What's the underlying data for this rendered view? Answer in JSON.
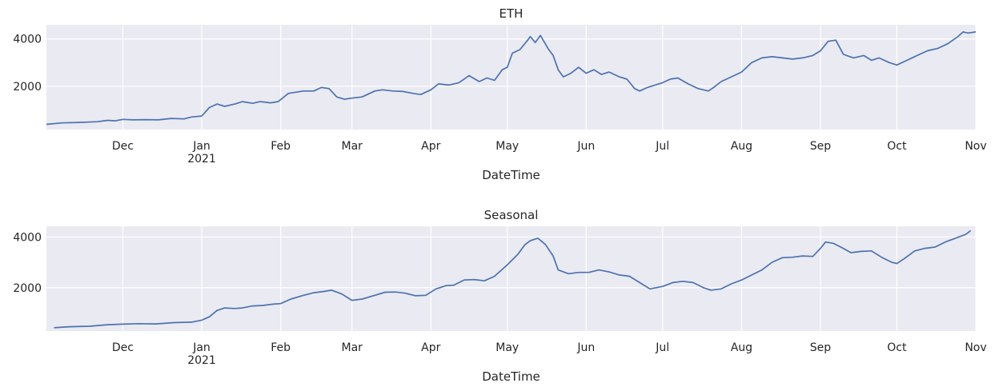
{
  "chart_data": [
    {
      "type": "line",
      "title": "ETH",
      "xlabel": "DateTime",
      "ylabel": "",
      "x_range": [
        "2020-11-01",
        "2021-11-01"
      ],
      "ylim": [
        170,
        4600
      ],
      "yticks": [
        2000,
        4000
      ],
      "xticks": [
        {
          "date": "2020-12-01",
          "label": "Dec",
          "sub": ""
        },
        {
          "date": "2021-01-01",
          "label": "Jan",
          "sub": "2021"
        },
        {
          "date": "2021-02-01",
          "label": "Feb",
          "sub": ""
        },
        {
          "date": "2021-03-01",
          "label": "Mar",
          "sub": ""
        },
        {
          "date": "2021-04-01",
          "label": "Apr",
          "sub": ""
        },
        {
          "date": "2021-05-01",
          "label": "May",
          "sub": ""
        },
        {
          "date": "2021-06-01",
          "label": "Jun",
          "sub": ""
        },
        {
          "date": "2021-07-01",
          "label": "Jul",
          "sub": ""
        },
        {
          "date": "2021-08-01",
          "label": "Aug",
          "sub": ""
        },
        {
          "date": "2021-09-01",
          "label": "Sep",
          "sub": ""
        },
        {
          "date": "2021-10-01",
          "label": "Oct",
          "sub": ""
        },
        {
          "date": "2021-11-01",
          "label": "Nov",
          "sub": ""
        }
      ],
      "grid": true,
      "series": [
        {
          "color": "#4c72b0",
          "x": [
            "2020-11-01",
            "2020-11-07",
            "2020-11-14",
            "2020-11-21",
            "2020-11-25",
            "2020-11-28",
            "2020-12-01",
            "2020-12-05",
            "2020-12-10",
            "2020-12-15",
            "2020-12-20",
            "2020-12-25",
            "2020-12-28",
            "2021-01-01",
            "2021-01-04",
            "2021-01-07",
            "2021-01-10",
            "2021-01-14",
            "2021-01-17",
            "2021-01-21",
            "2021-01-24",
            "2021-01-28",
            "2021-01-31",
            "2021-02-04",
            "2021-02-07",
            "2021-02-10",
            "2021-02-14",
            "2021-02-17",
            "2021-02-20",
            "2021-02-23",
            "2021-02-26",
            "2021-03-01",
            "2021-03-05",
            "2021-03-10",
            "2021-03-13",
            "2021-03-17",
            "2021-03-21",
            "2021-03-25",
            "2021-03-28",
            "2021-04-01",
            "2021-04-04",
            "2021-04-08",
            "2021-04-12",
            "2021-04-16",
            "2021-04-20",
            "2021-04-23",
            "2021-04-26",
            "2021-04-29",
            "2021-05-01",
            "2021-05-03",
            "2021-05-06",
            "2021-05-09",
            "2021-05-10",
            "2021-05-12",
            "2021-05-14",
            "2021-05-17",
            "2021-05-19",
            "2021-05-21",
            "2021-05-23",
            "2021-05-26",
            "2021-05-29",
            "2021-06-01",
            "2021-06-04",
            "2021-06-07",
            "2021-06-10",
            "2021-06-14",
            "2021-06-17",
            "2021-06-20",
            "2021-06-22",
            "2021-06-25",
            "2021-06-28",
            "2021-07-01",
            "2021-07-04",
            "2021-07-07",
            "2021-07-11",
            "2021-07-15",
            "2021-07-19",
            "2021-07-21",
            "2021-07-24",
            "2021-07-28",
            "2021-08-01",
            "2021-08-05",
            "2021-08-09",
            "2021-08-13",
            "2021-08-17",
            "2021-08-21",
            "2021-08-25",
            "2021-08-29",
            "2021-09-01",
            "2021-09-04",
            "2021-09-07",
            "2021-09-10",
            "2021-09-14",
            "2021-09-18",
            "2021-09-21",
            "2021-09-24",
            "2021-09-28",
            "2021-10-01",
            "2021-10-05",
            "2021-10-09",
            "2021-10-13",
            "2021-10-17",
            "2021-10-21",
            "2021-10-25",
            "2021-10-27",
            "2021-10-29",
            "2021-11-01"
          ],
          "values": [
            390,
            450,
            470,
            500,
            560,
            540,
            600,
            580,
            590,
            580,
            640,
            620,
            700,
            740,
            1100,
            1250,
            1150,
            1250,
            1350,
            1280,
            1350,
            1300,
            1350,
            1700,
            1750,
            1800,
            1800,
            1950,
            1900,
            1550,
            1450,
            1500,
            1550,
            1800,
            1850,
            1800,
            1780,
            1700,
            1650,
            1850,
            2100,
            2050,
            2150,
            2450,
            2200,
            2350,
            2250,
            2700,
            2800,
            3400,
            3550,
            3950,
            4100,
            3850,
            4150,
            3600,
            3300,
            2700,
            2400,
            2550,
            2800,
            2550,
            2700,
            2500,
            2600,
            2400,
            2300,
            1900,
            1800,
            1950,
            2050,
            2150,
            2300,
            2350,
            2100,
            1900,
            1800,
            1950,
            2200,
            2400,
            2600,
            3000,
            3200,
            3250,
            3200,
            3150,
            3200,
            3300,
            3500,
            3900,
            3950,
            3350,
            3200,
            3300,
            3100,
            3200,
            3000,
            2900,
            3100,
            3300,
            3500,
            3600,
            3800,
            4100,
            4300,
            4250,
            4300
          ]
        }
      ]
    },
    {
      "type": "line",
      "title": "Seasonal",
      "xlabel": "DateTime",
      "ylabel": "",
      "x_range": [
        "2020-11-01",
        "2021-11-01"
      ],
      "ylim": [
        290,
        4420
      ],
      "yticks": [
        2000,
        4000
      ],
      "xticks": [
        {
          "date": "2020-12-01",
          "label": "Dec",
          "sub": ""
        },
        {
          "date": "2021-01-01",
          "label": "Jan",
          "sub": "2021"
        },
        {
          "date": "2021-02-01",
          "label": "Feb",
          "sub": ""
        },
        {
          "date": "2021-03-01",
          "label": "Mar",
          "sub": ""
        },
        {
          "date": "2021-04-01",
          "label": "Apr",
          "sub": ""
        },
        {
          "date": "2021-05-01",
          "label": "May",
          "sub": ""
        },
        {
          "date": "2021-06-01",
          "label": "Jun",
          "sub": ""
        },
        {
          "date": "2021-07-01",
          "label": "Jul",
          "sub": ""
        },
        {
          "date": "2021-08-01",
          "label": "Aug",
          "sub": ""
        },
        {
          "date": "2021-09-01",
          "label": "Sep",
          "sub": ""
        },
        {
          "date": "2021-10-01",
          "label": "Oct",
          "sub": ""
        },
        {
          "date": "2021-11-01",
          "label": "Nov",
          "sub": ""
        }
      ],
      "grid": true,
      "series": [
        {
          "color": "#4c72b0",
          "x": [
            "2020-11-04",
            "2020-11-10",
            "2020-11-18",
            "2020-11-25",
            "2020-12-01",
            "2020-12-07",
            "2020-12-14",
            "2020-12-21",
            "2020-12-28",
            "2021-01-01",
            "2021-01-04",
            "2021-01-07",
            "2021-01-10",
            "2021-01-14",
            "2021-01-17",
            "2021-01-21",
            "2021-01-25",
            "2021-01-29",
            "2021-02-01",
            "2021-02-05",
            "2021-02-10",
            "2021-02-14",
            "2021-02-18",
            "2021-02-21",
            "2021-02-25",
            "2021-03-01",
            "2021-03-05",
            "2021-03-10",
            "2021-03-14",
            "2021-03-18",
            "2021-03-22",
            "2021-03-26",
            "2021-03-30",
            "2021-04-03",
            "2021-04-07",
            "2021-04-10",
            "2021-04-14",
            "2021-04-18",
            "2021-04-22",
            "2021-04-26",
            "2021-05-01",
            "2021-05-05",
            "2021-05-08",
            "2021-05-10",
            "2021-05-13",
            "2021-05-16",
            "2021-05-19",
            "2021-05-21",
            "2021-05-25",
            "2021-05-29",
            "2021-06-02",
            "2021-06-06",
            "2021-06-10",
            "2021-06-14",
            "2021-06-18",
            "2021-06-22",
            "2021-06-26",
            "2021-07-01",
            "2021-07-05",
            "2021-07-09",
            "2021-07-13",
            "2021-07-17",
            "2021-07-20",
            "2021-07-24",
            "2021-07-28",
            "2021-08-01",
            "2021-08-05",
            "2021-08-09",
            "2021-08-13",
            "2021-08-17",
            "2021-08-21",
            "2021-08-25",
            "2021-08-29",
            "2021-09-01",
            "2021-09-03",
            "2021-09-06",
            "2021-09-09",
            "2021-09-13",
            "2021-09-17",
            "2021-09-21",
            "2021-09-25",
            "2021-09-29",
            "2021-10-01",
            "2021-10-04",
            "2021-10-08",
            "2021-10-12",
            "2021-10-16",
            "2021-10-20",
            "2021-10-24",
            "2021-10-28",
            "2021-10-30"
          ],
          "values": [
            420,
            460,
            480,
            540,
            560,
            580,
            570,
            620,
            640,
            720,
            850,
            1100,
            1200,
            1180,
            1200,
            1280,
            1300,
            1350,
            1370,
            1550,
            1700,
            1800,
            1850,
            1900,
            1750,
            1500,
            1550,
            1700,
            1820,
            1830,
            1780,
            1680,
            1700,
            1950,
            2080,
            2100,
            2300,
            2320,
            2270,
            2450,
            2900,
            3300,
            3700,
            3850,
            3950,
            3700,
            3250,
            2700,
            2550,
            2600,
            2600,
            2700,
            2620,
            2500,
            2450,
            2200,
            1950,
            2050,
            2200,
            2250,
            2200,
            2000,
            1900,
            1950,
            2150,
            2300,
            2500,
            2700,
            3000,
            3180,
            3200,
            3250,
            3230,
            3550,
            3800,
            3750,
            3600,
            3380,
            3430,
            3450,
            3200,
            3000,
            2950,
            3150,
            3450,
            3550,
            3600,
            3800,
            3950,
            4100,
            4250
          ]
        }
      ]
    }
  ]
}
